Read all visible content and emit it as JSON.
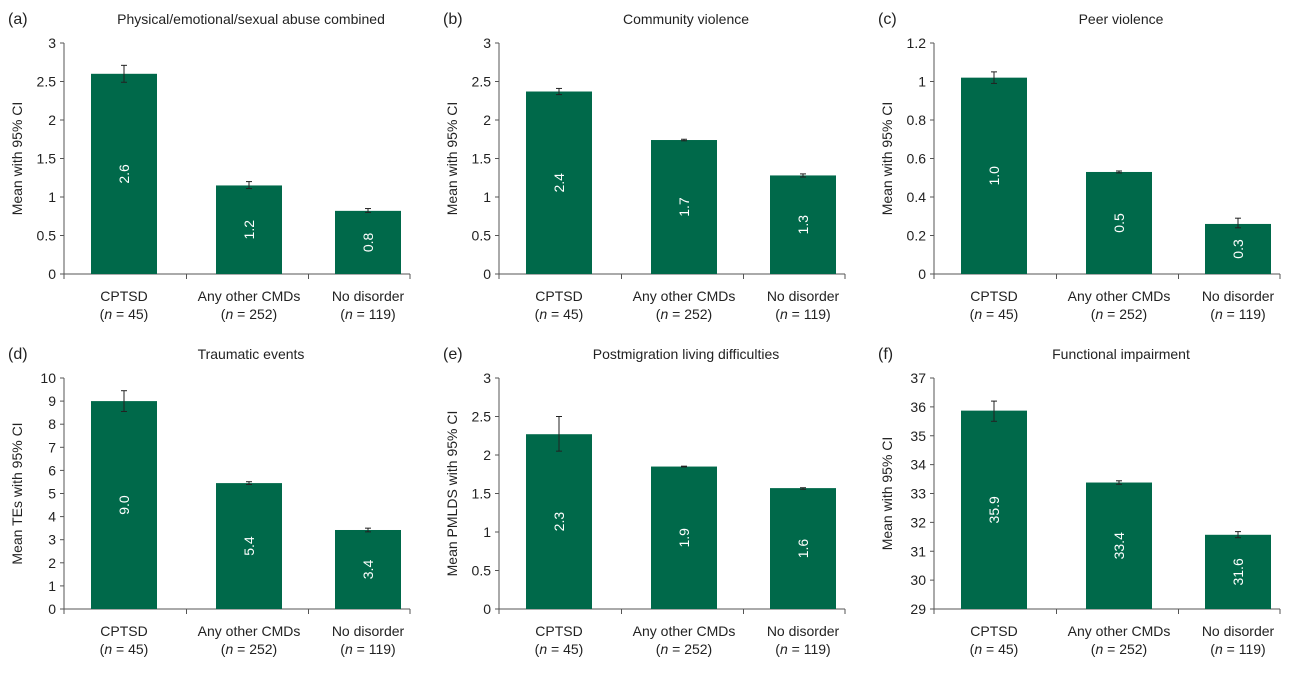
{
  "chart_data": [
    {
      "type": "bar",
      "panel": "(a)",
      "title": "Physical/emotional/sexual abuse combined",
      "ylabel": "Mean with 95% CI",
      "ylim": [
        0,
        3
      ],
      "yticks": [
        "0",
        "0.5",
        "1",
        "1.5",
        "2",
        "2.5",
        "3"
      ],
      "categories": [
        "CPTSD",
        "Any other CMDs",
        "No disorder"
      ],
      "n_labels": [
        [
          "(",
          "n",
          " = 45)"
        ],
        [
          "(",
          "n",
          " = 252)"
        ],
        [
          "(",
          "n",
          " = 119)"
        ]
      ],
      "values": [
        2.6,
        1.15,
        0.82
      ],
      "ci_lower": [
        2.49,
        1.11,
        0.8
      ],
      "ci_upper": [
        2.71,
        1.2,
        0.85
      ],
      "value_labels": [
        "2.6",
        "1.2",
        "0.8"
      ],
      "color": "#00694a"
    },
    {
      "type": "bar",
      "panel": "(b)",
      "title": "Community violence",
      "ylabel": "Mean with 95% CI",
      "ylim": [
        0,
        3
      ],
      "yticks": [
        "0",
        "0.5",
        "1",
        "1.5",
        "2",
        "2.5",
        "3"
      ],
      "categories": [
        "CPTSD",
        "Any other CMDs",
        "No disorder"
      ],
      "n_labels": [
        [
          "(",
          "n",
          " = 45)"
        ],
        [
          "(",
          "n",
          " = 252)"
        ],
        [
          "(",
          "n",
          " = 119)"
        ]
      ],
      "values": [
        2.37,
        1.74,
        1.28
      ],
      "ci_lower": [
        2.33,
        1.73,
        1.26
      ],
      "ci_upper": [
        2.41,
        1.75,
        1.3
      ],
      "value_labels": [
        "2.4",
        "1.7",
        "1.3"
      ],
      "color": "#00694a"
    },
    {
      "type": "bar",
      "panel": "(c)",
      "title": "Peer violence",
      "ylabel": "Mean with 95% CI",
      "ylim": [
        0,
        1.2
      ],
      "yticks": [
        "0",
        "0.2",
        "0.4",
        "0.6",
        "0.8",
        "1",
        "1.2"
      ],
      "categories": [
        "CPTSD",
        "Any other CMDs",
        "No disorder"
      ],
      "n_labels": [
        [
          "(",
          "n",
          " = 45)"
        ],
        [
          "(",
          "n",
          " = 252)"
        ],
        [
          "(",
          "n",
          " = 119)"
        ]
      ],
      "values": [
        1.02,
        0.53,
        0.26
      ],
      "ci_lower": [
        0.99,
        0.525,
        0.24
      ],
      "ci_upper": [
        1.05,
        0.535,
        0.29
      ],
      "value_labels": [
        "1.0",
        "0.5",
        "0.3"
      ],
      "color": "#00694a"
    },
    {
      "type": "bar",
      "panel": "(d)",
      "title": "Traumatic events",
      "ylabel": "Mean TEs with 95% CI",
      "ylim": [
        0,
        10
      ],
      "yticks": [
        "0",
        "1",
        "2",
        "3",
        "4",
        "5",
        "6",
        "7",
        "8",
        "9",
        "10"
      ],
      "categories": [
        "CPTSD",
        "Any other CMDs",
        "No disorder"
      ],
      "n_labels": [
        [
          "(",
          "n",
          " = 45)"
        ],
        [
          "(",
          "n",
          " = 252)"
        ],
        [
          "(",
          "n",
          " = 119)"
        ]
      ],
      "values": [
        9.0,
        5.45,
        3.42
      ],
      "ci_lower": [
        8.55,
        5.39,
        3.34
      ],
      "ci_upper": [
        9.45,
        5.51,
        3.5
      ],
      "value_labels": [
        "9.0",
        "5.4",
        "3.4"
      ],
      "color": "#00694a"
    },
    {
      "type": "bar",
      "panel": "(e)",
      "title": "Postmigration living difficulties",
      "ylabel": "Mean PMLDS  with 95% CI",
      "ylim": [
        0,
        3
      ],
      "yticks": [
        "0",
        "0.5",
        "1",
        "1.5",
        "2",
        "2.5",
        "3"
      ],
      "categories": [
        "CPTSD",
        "Any other CMDs",
        "No disorder"
      ],
      "n_labels": [
        [
          "(",
          "n",
          " = 45)"
        ],
        [
          "(",
          "n",
          " = 252)"
        ],
        [
          "(",
          "n",
          " = 119)"
        ]
      ],
      "values": [
        2.27,
        1.85,
        1.57
      ],
      "ci_lower": [
        2.05,
        1.845,
        1.555
      ],
      "ci_upper": [
        2.5,
        1.855,
        1.575
      ],
      "value_labels": [
        "2.3",
        "1.9",
        "1.6"
      ],
      "color": "#00694a"
    },
    {
      "type": "bar",
      "panel": "(f)",
      "title": "Functional impairment",
      "ylabel": "Mean with 95% CI",
      "ylim": [
        29,
        37
      ],
      "yticks": [
        "29",
        "30",
        "31",
        "32",
        "33",
        "34",
        "35",
        "36",
        "37"
      ],
      "categories": [
        "CPTSD",
        "Any other CMDs",
        "No disorder"
      ],
      "n_labels": [
        [
          "(",
          "n",
          " = 45)"
        ],
        [
          "(",
          "n",
          " = 252)"
        ],
        [
          "(",
          "n",
          " = 119)"
        ]
      ],
      "values": [
        35.87,
        33.38,
        31.57
      ],
      "ci_lower": [
        35.5,
        33.32,
        31.47
      ],
      "ci_upper": [
        36.2,
        33.44,
        31.68
      ],
      "value_labels": [
        "35.9",
        "33.4",
        "31.6"
      ],
      "color": "#00694a"
    }
  ]
}
